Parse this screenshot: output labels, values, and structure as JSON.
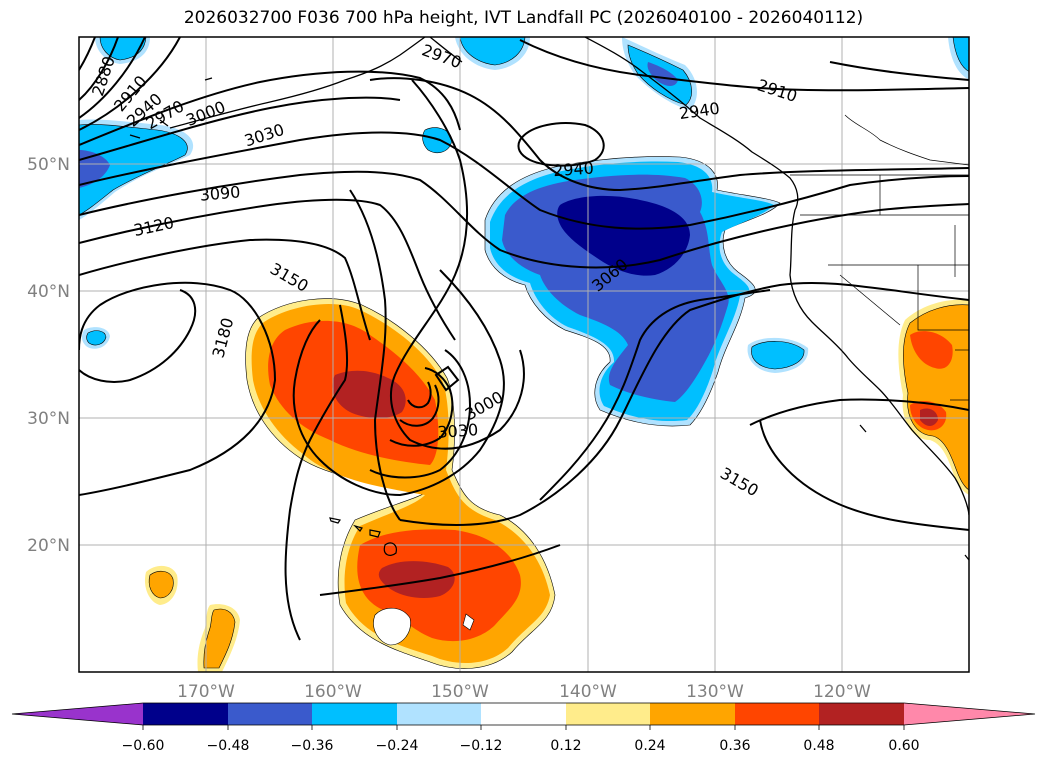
{
  "title": "2026032700 F036 700 hPa height, IVT Landfall PC (2026040100 - 2026040112)",
  "map": {
    "lon_range": [
      -180,
      -110
    ],
    "lat_range": [
      10,
      60
    ],
    "lon_ticks": [
      {
        "value": -170,
        "label": "170°W"
      },
      {
        "value": -160,
        "label": "160°W"
      },
      {
        "value": -150,
        "label": "150°W"
      },
      {
        "value": -140,
        "label": "140°W"
      },
      {
        "value": -130,
        "label": "130°W"
      },
      {
        "value": -120,
        "label": "120°W"
      }
    ],
    "lat_ticks": [
      {
        "value": 20,
        "label": "20°N"
      },
      {
        "value": 30,
        "label": "30°N"
      },
      {
        "value": 40,
        "label": "40°N"
      },
      {
        "value": 50,
        "label": "50°N"
      }
    ],
    "contour_labels": [
      {
        "text": "2880",
        "lon": -178.0,
        "lat": 56.9,
        "angle": -72
      },
      {
        "text": "2910",
        "lon": -175.9,
        "lat": 55.5,
        "angle": -50
      },
      {
        "text": "2940",
        "lon": -174.8,
        "lat": 54.2,
        "angle": -42
      },
      {
        "text": "2970",
        "lon": -173.2,
        "lat": 53.8,
        "angle": -30
      },
      {
        "text": "3000",
        "lon": -170.0,
        "lat": 53.9,
        "angle": -22
      },
      {
        "text": "3030",
        "lon": -165.4,
        "lat": 52.2,
        "angle": -18
      },
      {
        "text": "3090",
        "lon": -168.9,
        "lat": 47.6,
        "angle": -5
      },
      {
        "text": "3120",
        "lon": -174.1,
        "lat": 45.0,
        "angle": -12
      },
      {
        "text": "3150",
        "lon": -163.5,
        "lat": 41.0,
        "angle": 30
      },
      {
        "text": "3180",
        "lon": -168.6,
        "lat": 36.3,
        "angle": -75
      },
      {
        "text": "2970",
        "lon": -151.5,
        "lat": 58.4,
        "angle": 20
      },
      {
        "text": "2910",
        "lon": -125.1,
        "lat": 55.7,
        "angle": 18
      },
      {
        "text": "2940",
        "lon": -131.2,
        "lat": 54.1,
        "angle": -8
      },
      {
        "text": "2940",
        "lon": -141.1,
        "lat": 49.5,
        "angle": -4
      },
      {
        "text": "3060",
        "lon": -138.2,
        "lat": 41.2,
        "angle": -40
      },
      {
        "text": "3000",
        "lon": -148.1,
        "lat": 30.9,
        "angle": -30
      },
      {
        "text": "3030",
        "lon": -150.2,
        "lat": 28.9,
        "angle": -4
      },
      {
        "text": "3150",
        "lon": -128.1,
        "lat": 24.9,
        "angle": 30
      }
    ]
  },
  "colorbar": {
    "ticks": [
      "−0.60",
      "−0.48",
      "−0.36",
      "−0.24",
      "−0.12",
      "0.12",
      "0.24",
      "0.36",
      "0.48",
      "0.60"
    ],
    "colors": [
      "#9933cc",
      "#00008b",
      "#3a5acc",
      "#00bfff",
      "#b0e2ff",
      "#ffffff",
      "#ffec8b",
      "#ffa500",
      "#ff4500",
      "#b22222",
      "#ff88aa"
    ]
  },
  "fills": {
    "pos_1": "#ffec8b",
    "pos_2": "#ffa500",
    "pos_3": "#ff4500",
    "pos_4": "#b22222",
    "neg_1": "#b0e2ff",
    "neg_2": "#00bfff",
    "neg_3": "#3a5acc",
    "neg_4": "#00008b"
  }
}
